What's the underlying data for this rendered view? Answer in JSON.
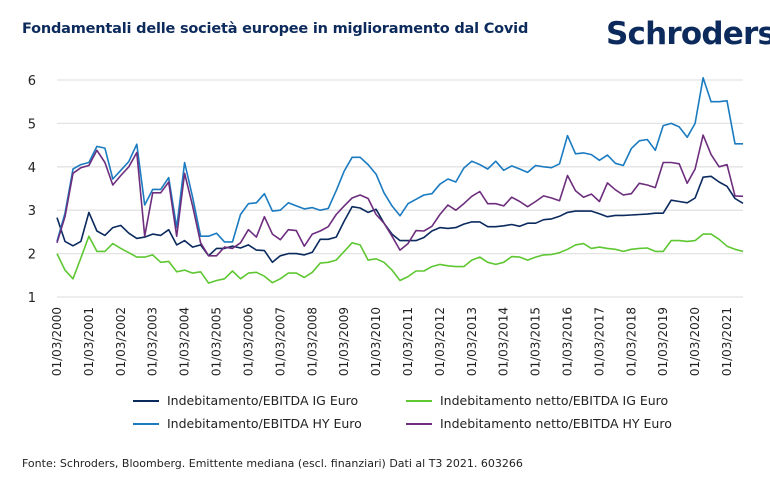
{
  "title": "Fondamentali delle società europee in miglioramento dal Covid",
  "logo_text": "Schroders",
  "footer": "Fonte: Schroders, Bloomberg. Emittente mediana (escl. finanziari) Dati al T3 2021. 603266",
  "chart_data": {
    "type": "line",
    "title": "Fondamentali delle società europee in miglioramento dal Covid",
    "xlabel": "",
    "ylabel": "",
    "frequency": "quarterly",
    "x_start": "Q1 2000",
    "x_end": "Q3 2021",
    "x_tick_labels": [
      "01/03/2000",
      "01/03/2001",
      "01/03/2002",
      "01/03/2003",
      "01/03/2004",
      "01/03/2005",
      "01/03/2006",
      "01/03/2007",
      "01/03/2008",
      "01/03/2009",
      "01/03/2010",
      "01/03/2011",
      "01/03/2012",
      "01/03/2013",
      "01/03/2014",
      "01/03/2015",
      "01/03/2016",
      "01/03/2017",
      "01/03/2018",
      "01/03/2019",
      "01/03/2020",
      "01/03/2021"
    ],
    "y_ticks": [
      1,
      2,
      3,
      4,
      5,
      6
    ],
    "ylim": [
      1,
      6
    ],
    "grid": "horizontal",
    "legend": "bottom",
    "series": [
      {
        "name": "Indebitamento/EBITDA IG Euro",
        "color": "#0b2a5e",
        "values": [
          2.83,
          2.28,
          2.18,
          2.28,
          2.95,
          2.52,
          2.42,
          2.6,
          2.65,
          2.47,
          2.35,
          2.38,
          2.45,
          2.42,
          2.55,
          2.2,
          2.3,
          2.15,
          2.2,
          1.95,
          2.12,
          2.12,
          2.17,
          2.13,
          2.2,
          2.08,
          2.07,
          1.8,
          1.95,
          2.0,
          2.0,
          1.97,
          2.03,
          2.33,
          2.33,
          2.38,
          2.75,
          3.08,
          3.05,
          2.95,
          3.02,
          2.7,
          2.45,
          2.3,
          2.3,
          2.3,
          2.37,
          2.52,
          2.6,
          2.58,
          2.6,
          2.68,
          2.73,
          2.73,
          2.62,
          2.62,
          2.64,
          2.67,
          2.63,
          2.7,
          2.7,
          2.78,
          2.8,
          2.86,
          2.95,
          2.98,
          2.98,
          2.98,
          2.92,
          2.85,
          2.88,
          2.88,
          2.89,
          2.9,
          2.91,
          2.93,
          2.93,
          3.23,
          3.2,
          3.17,
          3.28,
          3.76,
          3.78,
          3.65,
          3.55,
          3.27,
          3.16
        ]
      },
      {
        "name": "Indebitamento netto/EBITDA IG Euro",
        "color": "#5ec732",
        "values": [
          2.0,
          1.62,
          1.42,
          1.9,
          2.4,
          2.05,
          2.05,
          2.23,
          2.12,
          2.02,
          1.92,
          1.92,
          1.97,
          1.8,
          1.82,
          1.58,
          1.62,
          1.55,
          1.58,
          1.32,
          1.38,
          1.42,
          1.6,
          1.42,
          1.55,
          1.57,
          1.48,
          1.33,
          1.42,
          1.55,
          1.55,
          1.45,
          1.57,
          1.78,
          1.8,
          1.85,
          2.05,
          2.25,
          2.2,
          1.85,
          1.88,
          1.8,
          1.62,
          1.38,
          1.47,
          1.6,
          1.6,
          1.7,
          1.75,
          1.72,
          1.7,
          1.7,
          1.85,
          1.92,
          1.8,
          1.75,
          1.8,
          1.93,
          1.92,
          1.85,
          1.92,
          1.97,
          1.98,
          2.02,
          2.1,
          2.2,
          2.23,
          2.12,
          2.15,
          2.12,
          2.1,
          2.05,
          2.1,
          2.12,
          2.13,
          2.05,
          2.05,
          2.3,
          2.3,
          2.28,
          2.3,
          2.45,
          2.45,
          2.33,
          2.17,
          2.1,
          2.05
        ]
      },
      {
        "name": "Indebitamento/EBITDA HY Euro",
        "color": "#1b7bc0",
        "values": [
          2.28,
          2.93,
          3.95,
          4.05,
          4.1,
          4.47,
          4.43,
          3.72,
          3.92,
          4.12,
          4.52,
          3.12,
          3.48,
          3.48,
          3.75,
          2.6,
          4.1,
          3.3,
          2.4,
          2.4,
          2.47,
          2.27,
          2.27,
          2.9,
          3.15,
          3.17,
          3.38,
          2.98,
          3.0,
          3.17,
          3.1,
          3.03,
          3.06,
          3.0,
          3.04,
          3.45,
          3.9,
          4.22,
          4.22,
          4.05,
          3.83,
          3.4,
          3.1,
          2.87,
          3.15,
          3.25,
          3.35,
          3.38,
          3.6,
          3.72,
          3.65,
          3.97,
          4.13,
          4.05,
          3.95,
          4.13,
          3.92,
          4.02,
          3.95,
          3.87,
          4.03,
          4.0,
          3.98,
          4.07,
          4.72,
          4.3,
          4.32,
          4.28,
          4.15,
          4.27,
          4.08,
          4.03,
          4.42,
          4.6,
          4.63,
          4.38,
          4.95,
          5.0,
          4.92,
          4.68,
          5.0,
          6.05,
          5.5,
          5.5,
          5.52,
          4.53,
          4.53
        ]
      },
      {
        "name": "Indebitamento netto/EBITDA HY Euro",
        "color": "#6d2e7e",
        "values": [
          2.25,
          2.85,
          3.85,
          3.98,
          4.03,
          4.38,
          4.1,
          3.58,
          3.8,
          4.0,
          4.33,
          2.4,
          3.4,
          3.4,
          3.65,
          2.4,
          3.85,
          3.1,
          2.25,
          1.95,
          1.95,
          2.15,
          2.12,
          2.25,
          2.55,
          2.38,
          2.85,
          2.45,
          2.32,
          2.55,
          2.53,
          2.17,
          2.45,
          2.52,
          2.62,
          2.9,
          3.1,
          3.28,
          3.35,
          3.27,
          2.9,
          2.7,
          2.4,
          2.08,
          2.23,
          2.53,
          2.52,
          2.63,
          2.9,
          3.12,
          3.0,
          3.15,
          3.32,
          3.43,
          3.15,
          3.15,
          3.1,
          3.3,
          3.2,
          3.08,
          3.2,
          3.33,
          3.28,
          3.22,
          3.8,
          3.45,
          3.3,
          3.37,
          3.2,
          3.63,
          3.47,
          3.35,
          3.38,
          3.62,
          3.58,
          3.52,
          4.1,
          4.1,
          4.07,
          3.62,
          3.95,
          4.73,
          4.28,
          4.0,
          4.05,
          3.33,
          3.32
        ]
      }
    ]
  }
}
